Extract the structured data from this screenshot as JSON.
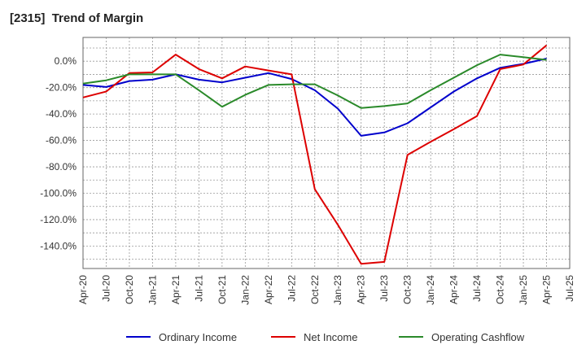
{
  "chart_data": {
    "type": "line",
    "title": "[2315]  Trend of Margin",
    "xlabel": "",
    "ylabel": "",
    "ylim": [
      -157,
      18
    ],
    "yticks": [
      0,
      -20,
      -40,
      -60,
      -80,
      -100,
      -120,
      -140
    ],
    "ytick_labels": [
      "0.0%",
      "-20.0%",
      "-40.0%",
      "-60.0%",
      "-80.0%",
      "-100.0%",
      "-120.0%",
      "-140.0%"
    ],
    "categories": [
      "Apr-20",
      "Jul-20",
      "Oct-20",
      "Jan-21",
      "Apr-21",
      "Jul-21",
      "Oct-21",
      "Jan-22",
      "Apr-22",
      "Jul-22",
      "Oct-22",
      "Jan-23",
      "Apr-23",
      "Jul-23",
      "Oct-23",
      "Jan-24",
      "Apr-24",
      "Jul-24",
      "Oct-24",
      "Jan-25",
      "Apr-25",
      "Jul-25"
    ],
    "grid": true,
    "legend_position": "bottom",
    "series": [
      {
        "name": "Ordinary Income",
        "color": "#0000cc",
        "values": [
          -18,
          -19.5,
          -15,
          -14,
          -10,
          -14,
          -16,
          -12.5,
          -9,
          -13.5,
          -22,
          -36,
          -56.5,
          -54,
          -47,
          -35,
          -23,
          -13,
          -5,
          -2,
          2,
          null
        ]
      },
      {
        "name": "Net Income",
        "color": "#dd0000",
        "values": [
          -27.5,
          -23,
          -9,
          -8.5,
          5,
          -6,
          -13,
          -4,
          -7,
          -10,
          -97,
          -124,
          -153.5,
          -152,
          -71,
          -61,
          -51.5,
          -41.5,
          -6,
          -2.5,
          12,
          null
        ]
      },
      {
        "name": "Operating Cashflow",
        "color": "#2a8a2a",
        "values": [
          -17,
          -14.5,
          -10,
          -10,
          -10,
          -22,
          -34.5,
          -25.5,
          -18,
          -17.5,
          -17.5,
          -26,
          -35.5,
          -34,
          -32,
          -22,
          -12.5,
          -3,
          5,
          3,
          1,
          null
        ]
      }
    ]
  }
}
